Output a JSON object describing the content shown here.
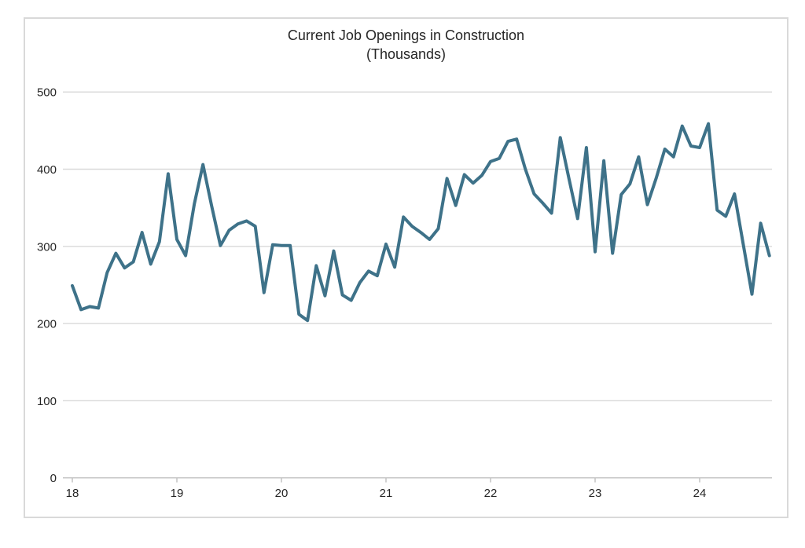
{
  "chart": {
    "title_line1": "Current Job Openings in Construction",
    "title_line2": "(Thousands)",
    "line_color": "#3E7289",
    "gridline_color": "#D9D9D9",
    "axis_line_color": "#BFBFBF",
    "label_color": "#262626",
    "frame_border_color": "#D9D9D9"
  },
  "chart_data": {
    "type": "line",
    "title": "Current Job Openings in Construction",
    "subtitle": "(Thousands)",
    "xlabel": "",
    "ylabel": "",
    "x_tick_labels": [
      "18",
      "19",
      "20",
      "21",
      "22",
      "23",
      "24"
    ],
    "y_tick_labels": [
      "0",
      "100",
      "200",
      "300",
      "400",
      "500"
    ],
    "ylim": [
      0,
      500
    ],
    "grid": "horizontal",
    "legend": "none",
    "frequency": "monthly",
    "first_point": "2018-01",
    "last_point": "2024-09",
    "n_points": 81,
    "series": [
      {
        "name": "Construction job openings (thousands)",
        "values": [
          249,
          218,
          222,
          220,
          266,
          291,
          272,
          280,
          318,
          277,
          306,
          394,
          309,
          288,
          355,
          406,
          352,
          301,
          321,
          329,
          333,
          326,
          240,
          302,
          301,
          301,
          212,
          204,
          275,
          236,
          294,
          237,
          230,
          253,
          268,
          262,
          303,
          273,
          338,
          326,
          318,
          309,
          323,
          388,
          353,
          393,
          382,
          392,
          410,
          414,
          436,
          439,
          400,
          368,
          356,
          343,
          441,
          388,
          336,
          428,
          293,
          411,
          291,
          367,
          381,
          416,
          354,
          388,
          426,
          416,
          456,
          430,
          428,
          459,
          347,
          339,
          368,
          303,
          238,
          330,
          288
        ]
      }
    ]
  }
}
